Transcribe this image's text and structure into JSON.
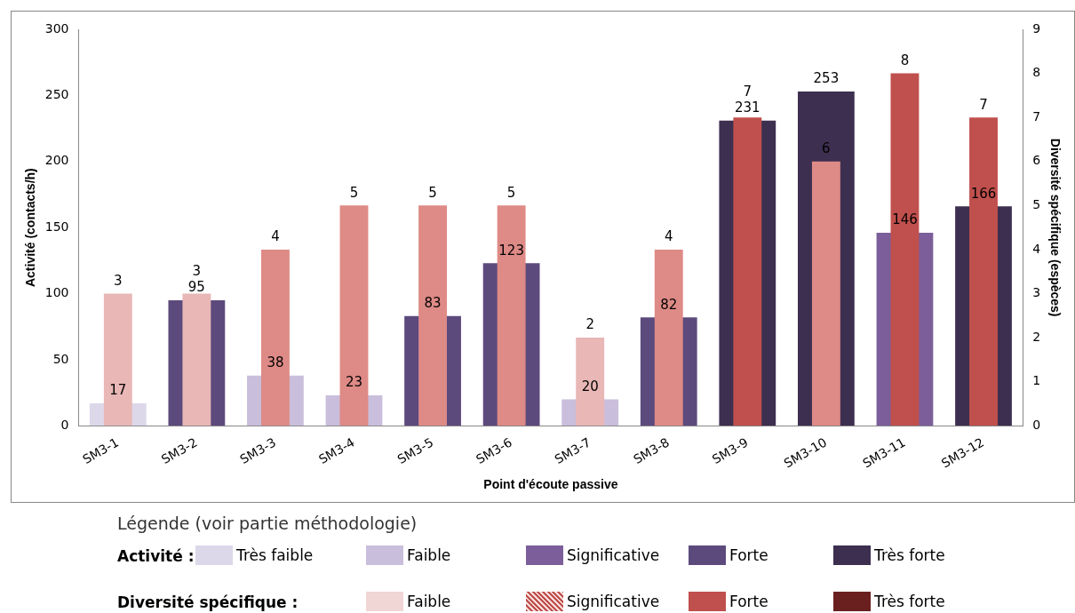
{
  "chart_data": {
    "type": "bar",
    "categories": [
      "SM3-1",
      "SM3-2",
      "SM3-3",
      "SM3-4",
      "SM3-5",
      "SM3-6",
      "SM3-7",
      "SM3-8",
      "SM3-9",
      "SM3-10",
      "SM3-11",
      "SM3-12"
    ],
    "series": [
      {
        "colors": [
          "#dcd8ea",
          "#5c4a7d",
          "#c9bedb",
          "#c9bedb",
          "#5c4a7d",
          "#5c4a7d",
          "#c9bedb",
          "#5c4a7d",
          "#3d2f50",
          "#3d2f50",
          "#7b5e9a",
          "#3d2f50"
        ],
        "values": [
          17,
          95,
          38,
          23,
          83,
          123,
          20,
          82,
          231,
          253,
          146,
          166
        ]
      },
      {
        "axis": "y2",
        "colors": [
          "#e8b7b6",
          "#e8b7b6",
          "#de8a86",
          "#de8a86",
          "#de8a86",
          "#de8a86",
          "#e8b7b6",
          "#de8a86",
          "#c0504d",
          "#de8a86",
          "#c0504d",
          "#c0504d"
        ],
        "values": [
          3,
          3,
          4,
          5,
          5,
          5,
          2,
          4,
          7,
          6,
          8,
          7
        ]
      }
    ],
    "ylim": [
      0,
      300
    ],
    "yticks": [
      0,
      50,
      100,
      150,
      200,
      250,
      300
    ],
    "y2lim": [
      0,
      9
    ],
    "y2ticks": [
      0,
      1,
      2,
      3,
      4,
      5,
      6,
      7,
      8,
      9
    ],
    "xlabel": "Point d'écoute passive",
    "ylabel": "Activité (contacts/h)",
    "y2label": "Diversité spécifique (espèces)",
    "data_labels": true,
    "grid": false,
    "legend_title": "Légende (voir partie méthodologie)",
    "annotations": [
      "Activité :",
      "Diversité spécifique :",
      "Très faible",
      "Faible",
      "Significative",
      "Forte",
      "Très forte",
      "Faible",
      "Significative",
      "Forte",
      "Très forte"
    ]
  }
}
